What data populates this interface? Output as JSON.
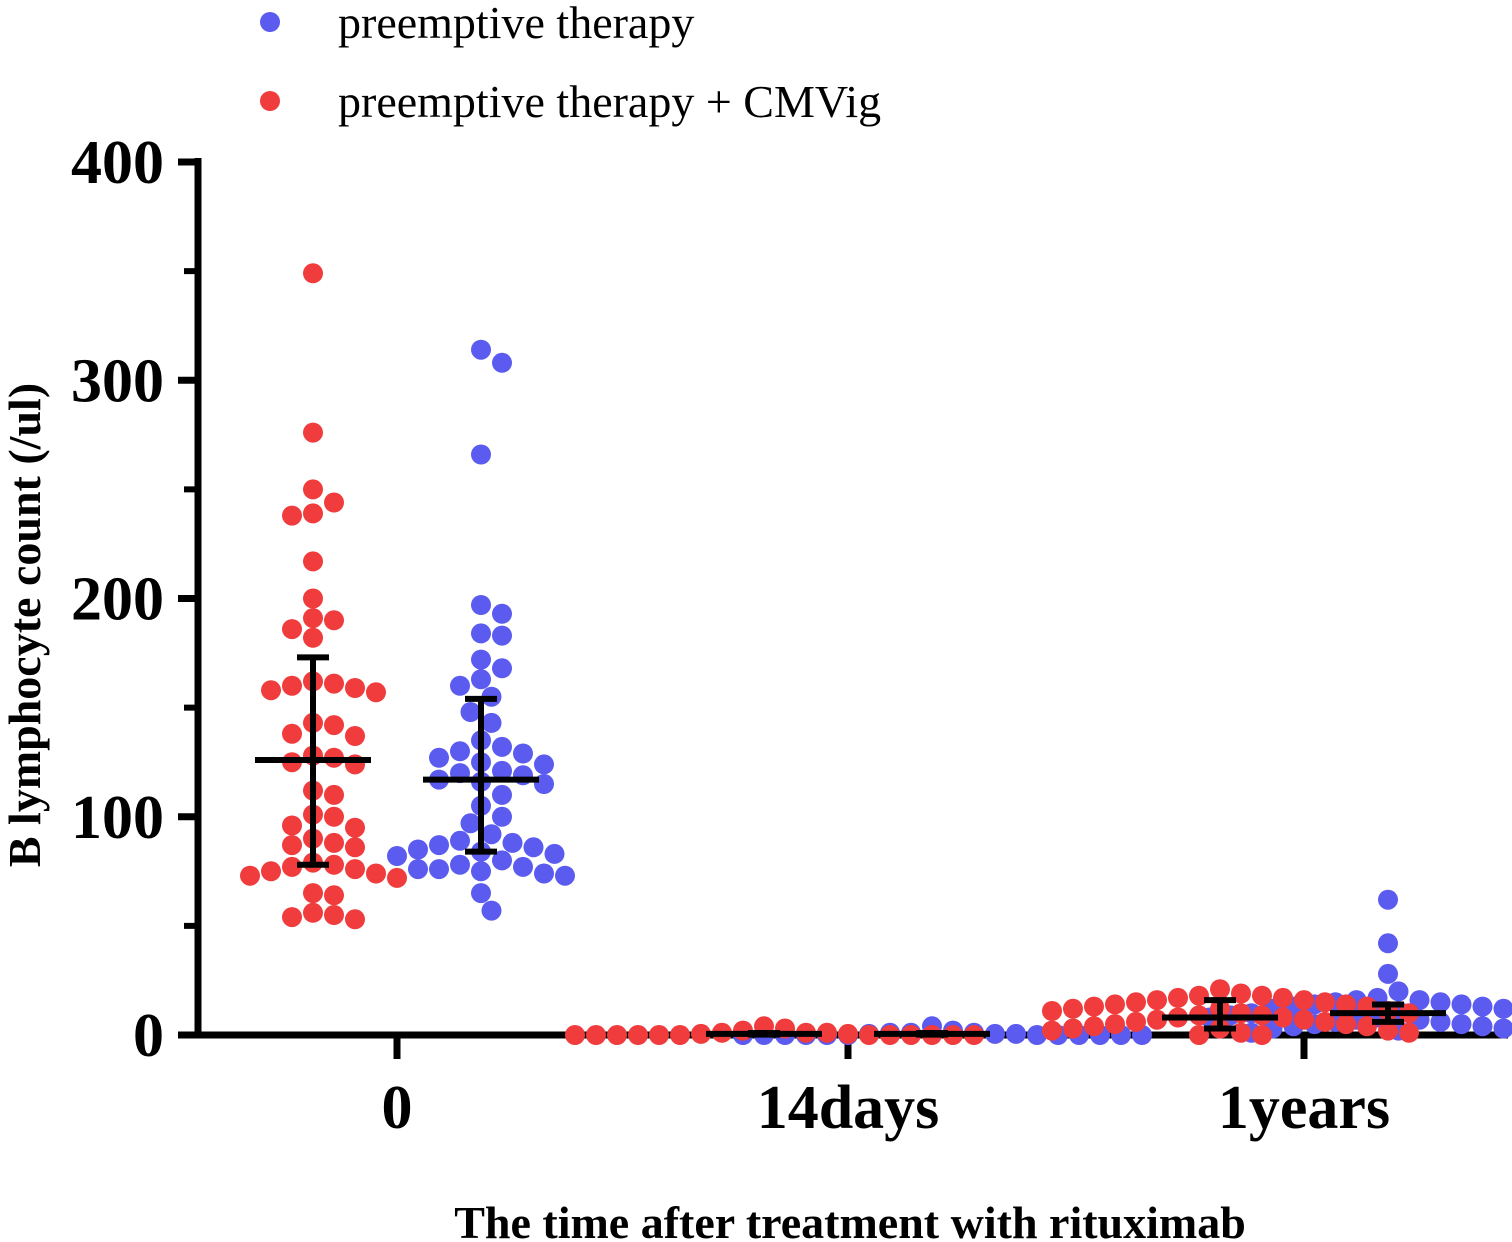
{
  "chart_data": {
    "type": "scatter",
    "title": "",
    "xlabel": "The time after treatment with rituximab",
    "ylabel": "B lymphocyte count (/ul)",
    "ylim": [
      0,
      400
    ],
    "yticks": [
      0,
      100,
      200,
      300,
      400
    ],
    "categories": [
      "0",
      "14days",
      "1years"
    ],
    "legend": {
      "placement": "top-left"
    },
    "series": [
      {
        "name": "preemptive therapy",
        "color": "#5b5bf0",
        "order": 2,
        "groups": [
          {
            "category": "0",
            "mean": 117,
            "error": [
              84,
              154
            ],
            "values": [
              314,
              308,
              266,
              197,
              193,
              184,
              183,
              172,
              168,
              163,
              160,
              155,
              148,
              143,
              135,
              132,
              130,
              129,
              127,
              125,
              124,
              121,
              120,
              119,
              117,
              116,
              115,
              110,
              105,
              100,
              97,
              92,
              89,
              88,
              87,
              86,
              85,
              84,
              83,
              82,
              80,
              78,
              77,
              76,
              76,
              75,
              74,
              73,
              65,
              57
            ]
          },
          {
            "category": "14days",
            "mean": 0.5,
            "error": [
              0.2,
              0.9
            ],
            "values": [
              4,
              2,
              1,
              1,
              1,
              0.5,
              0.5,
              0.5,
              0,
              0,
              0,
              0,
              0,
              0,
              0,
              0,
              0,
              0,
              0,
              0
            ]
          },
          {
            "category": "1years",
            "mean": 10,
            "error": [
              6,
              14
            ],
            "values": [
              62,
              42,
              28,
              20,
              17,
              16,
              16,
              15,
              15,
              14,
              14,
              13,
              13,
              12,
              12,
              11,
              11,
              10,
              10,
              9,
              9,
              8,
              8,
              7,
              7,
              6,
              6,
              5,
              5,
              4,
              4,
              3,
              3,
              2,
              2,
              1
            ]
          }
        ]
      },
      {
        "name": "preemptive therapy + CMVig",
        "color": "#f03c3c",
        "order": 1,
        "groups": [
          {
            "category": "0",
            "mean": 126,
            "error": [
              78,
              173
            ],
            "values": [
              349,
              276,
              250,
              244,
              239,
              238,
              217,
              200,
              191,
              190,
              186,
              182,
              162,
              161,
              160,
              159,
              158,
              157,
              143,
              142,
              138,
              137,
              128,
              127,
              125,
              124,
              112,
              110,
              101,
              100,
              96,
              95,
              90,
              88,
              87,
              86,
              79,
              78,
              77,
              76,
              75,
              74,
              73,
              72,
              65,
              64,
              56,
              55,
              54,
              53
            ]
          },
          {
            "category": "14days",
            "mean": 0.5,
            "error": [
              0.2,
              0.9
            ],
            "values": [
              4,
              3,
              2,
              1,
              1,
              1,
              0.5,
              0.5,
              0,
              0,
              0,
              0,
              0,
              0,
              0,
              0,
              0,
              0,
              0,
              0
            ]
          },
          {
            "category": "1years",
            "mean": 8,
            "error": [
              3,
              16
            ],
            "values": [
              21,
              19,
              18,
              18,
              17,
              17,
              16,
              16,
              15,
              15,
              14,
              14,
              13,
              13,
              12,
              12,
              11,
              11,
              10,
              10,
              9,
              9,
              8,
              8,
              7,
              7,
              6,
              6,
              5,
              5,
              4,
              4,
              3,
              3,
              2,
              2,
              1,
              1,
              0,
              0
            ]
          }
        ]
      }
    ]
  }
}
